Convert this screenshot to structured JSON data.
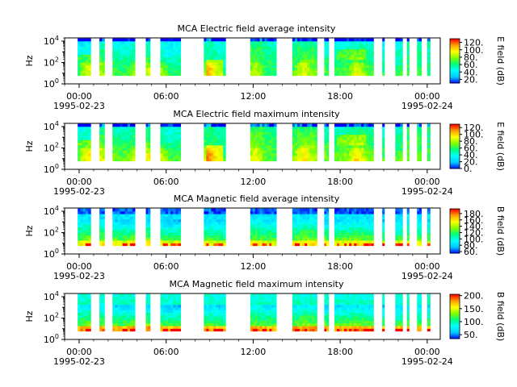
{
  "figure": {
    "time_range": [
      "1995-02-23 00:00",
      "1995-02-24 00:30"
    ]
  },
  "colormap": [
    "#0000ff",
    "#00c8ff",
    "#00ffff",
    "#00ff80",
    "#80ff00",
    "#ffff00",
    "#ffa000",
    "#ff0000"
  ],
  "chart_data": [
    {
      "type": "heatmap",
      "title": "MCA  Electric field average intensity",
      "ylabel": "Hz",
      "y_scale": "log",
      "ylim": [
        1,
        20000
      ],
      "y_ticks": [
        {
          "value": 1,
          "base": "10",
          "exp": "0"
        },
        {
          "value": 100,
          "base": "10",
          "exp": "2"
        },
        {
          "value": 10000,
          "base": "10",
          "exp": "4"
        }
      ],
      "x_ticks": [
        {
          "hour": 0,
          "label": "00:00",
          "date": "1995-02-23"
        },
        {
          "hour": 6,
          "label": "06:00",
          "date": ""
        },
        {
          "hour": 12,
          "label": "12:00",
          "date": ""
        },
        {
          "hour": 18,
          "label": "18:00",
          "date": ""
        },
        {
          "hour": 24,
          "label": "00:00",
          "date": "1995-02-24"
        }
      ],
      "xlim_hours": [
        -1.0,
        24.9
      ],
      "colorbar_label": "E field (dB)",
      "colorbar_range": [
        10,
        130
      ],
      "colorbar_ticks": [
        {
          "value": 20,
          "label": "20."
        },
        {
          "value": 40,
          "label": "40."
        },
        {
          "value": 60,
          "label": "60."
        },
        {
          "value": 80,
          "label": "80."
        },
        {
          "value": 100,
          "label": "100."
        },
        {
          "value": 120,
          "label": "120."
        }
      ],
      "profile": "electric-average",
      "data_segments_hours": [
        [
          -0.1,
          0.8
        ],
        [
          1.4,
          1.75
        ],
        [
          2.3,
          3.85
        ],
        [
          4.6,
          4.9
        ],
        [
          5.6,
          7.0
        ],
        [
          8.6,
          10.1
        ],
        [
          11.8,
          13.6
        ],
        [
          14.7,
          16.4
        ],
        [
          16.9,
          17.2
        ],
        [
          17.6,
          20.3
        ],
        [
          20.9,
          21.05
        ],
        [
          21.8,
          22.3
        ],
        [
          22.6,
          22.75
        ],
        [
          23.3,
          23.6
        ],
        [
          24.0,
          24.2
        ]
      ]
    },
    {
      "type": "heatmap",
      "title": "MCA  Electric field maximum intensity",
      "ylabel": "Hz",
      "y_scale": "log",
      "ylim": [
        1,
        20000
      ],
      "y_ticks": [
        {
          "value": 1,
          "base": "10",
          "exp": "0"
        },
        {
          "value": 100,
          "base": "10",
          "exp": "2"
        },
        {
          "value": 10000,
          "base": "10",
          "exp": "4"
        }
      ],
      "x_ticks": [
        {
          "hour": 0,
          "label": "00:00",
          "date": "1995-02-23"
        },
        {
          "hour": 6,
          "label": "06:00",
          "date": ""
        },
        {
          "hour": 12,
          "label": "12:00",
          "date": ""
        },
        {
          "hour": 18,
          "label": "18:00",
          "date": ""
        },
        {
          "hour": 24,
          "label": "00:00",
          "date": "1995-02-24"
        }
      ],
      "xlim_hours": [
        -1.0,
        24.9
      ],
      "colorbar_label": "E field (dB)",
      "colorbar_range": [
        0,
        130
      ],
      "colorbar_ticks": [
        {
          "value": 0,
          "label": "0."
        },
        {
          "value": 20,
          "label": "20."
        },
        {
          "value": 40,
          "label": "40."
        },
        {
          "value": 60,
          "label": "60."
        },
        {
          "value": 80,
          "label": "80."
        },
        {
          "value": 100,
          "label": "100."
        },
        {
          "value": 120,
          "label": "120."
        }
      ],
      "profile": "electric-maximum",
      "data_segments_hours": [
        [
          -0.1,
          0.8
        ],
        [
          1.4,
          1.75
        ],
        [
          2.3,
          3.85
        ],
        [
          4.6,
          4.9
        ],
        [
          5.6,
          7.0
        ],
        [
          8.6,
          10.1
        ],
        [
          11.8,
          13.6
        ],
        [
          14.7,
          16.4
        ],
        [
          16.9,
          17.2
        ],
        [
          17.6,
          20.3
        ],
        [
          20.9,
          21.05
        ],
        [
          21.8,
          22.3
        ],
        [
          22.6,
          22.75
        ],
        [
          23.3,
          23.6
        ],
        [
          24.0,
          24.2
        ]
      ]
    },
    {
      "type": "heatmap",
      "title": "MCA  Magnetic field average intensity",
      "ylabel": "Hz",
      "y_scale": "log",
      "ylim": [
        1,
        20000
      ],
      "y_ticks": [
        {
          "value": 1,
          "base": "10",
          "exp": "0"
        },
        {
          "value": 100,
          "base": "10",
          "exp": "2"
        },
        {
          "value": 10000,
          "base": "10",
          "exp": "4"
        }
      ],
      "x_ticks": [
        {
          "hour": 0,
          "label": "00:00",
          "date": "1995-02-23"
        },
        {
          "hour": 6,
          "label": "06:00",
          "date": ""
        },
        {
          "hour": 12,
          "label": "12:00",
          "date": ""
        },
        {
          "hour": 18,
          "label": "18:00",
          "date": ""
        },
        {
          "hour": 24,
          "label": "00:00",
          "date": "1995-02-24"
        }
      ],
      "xlim_hours": [
        -1.0,
        24.9
      ],
      "colorbar_label": "B field (dB)",
      "colorbar_range": [
        55,
        195
      ],
      "colorbar_ticks": [
        {
          "value": 60,
          "label": "60."
        },
        {
          "value": 80,
          "label": "80."
        },
        {
          "value": 100,
          "label": "100."
        },
        {
          "value": 120,
          "label": "120."
        },
        {
          "value": 140,
          "label": "140."
        },
        {
          "value": 160,
          "label": "160."
        },
        {
          "value": 180,
          "label": "180."
        }
      ],
      "profile": "magnetic-average",
      "data_segments_hours": [
        [
          -0.1,
          0.8
        ],
        [
          1.4,
          1.75
        ],
        [
          2.3,
          3.85
        ],
        [
          4.6,
          4.9
        ],
        [
          5.6,
          7.0
        ],
        [
          8.6,
          10.1
        ],
        [
          11.8,
          13.6
        ],
        [
          14.7,
          16.4
        ],
        [
          16.9,
          17.2
        ],
        [
          17.6,
          20.3
        ],
        [
          20.9,
          21.05
        ],
        [
          21.8,
          22.3
        ],
        [
          22.6,
          22.75
        ],
        [
          23.3,
          23.6
        ],
        [
          24.0,
          24.2
        ]
      ]
    },
    {
      "type": "heatmap",
      "title": "MCA  Magnetic field maximum intensity",
      "ylabel": "Hz",
      "y_scale": "log",
      "ylim": [
        1,
        20000
      ],
      "y_ticks": [
        {
          "value": 1,
          "base": "10",
          "exp": "0"
        },
        {
          "value": 100,
          "base": "10",
          "exp": "2"
        },
        {
          "value": 10000,
          "base": "10",
          "exp": "4"
        }
      ],
      "x_ticks": [
        {
          "hour": 0,
          "label": "00:00",
          "date": "1995-02-23"
        },
        {
          "hour": 6,
          "label": "06:00",
          "date": ""
        },
        {
          "hour": 12,
          "label": "12:00",
          "date": ""
        },
        {
          "hour": 18,
          "label": "18:00",
          "date": ""
        },
        {
          "hour": 24,
          "label": "00:00",
          "date": "1995-02-24"
        }
      ],
      "xlim_hours": [
        -1.0,
        24.9
      ],
      "colorbar_label": "B field (dB)",
      "colorbar_range": [
        35,
        205
      ],
      "colorbar_ticks": [
        {
          "value": 50,
          "label": "50."
        },
        {
          "value": 100,
          "label": "100."
        },
        {
          "value": 150,
          "label": "150."
        },
        {
          "value": 200,
          "label": "200."
        }
      ],
      "profile": "magnetic-maximum",
      "data_segments_hours": [
        [
          -0.1,
          0.8
        ],
        [
          1.4,
          1.75
        ],
        [
          2.3,
          3.85
        ],
        [
          4.6,
          4.9
        ],
        [
          5.6,
          7.0
        ],
        [
          8.6,
          10.1
        ],
        [
          11.8,
          13.6
        ],
        [
          14.7,
          16.4
        ],
        [
          16.9,
          17.2
        ],
        [
          17.6,
          20.3
        ],
        [
          20.9,
          21.05
        ],
        [
          21.8,
          22.3
        ],
        [
          22.6,
          22.75
        ],
        [
          23.3,
          23.6
        ],
        [
          24.0,
          24.2
        ]
      ]
    }
  ]
}
